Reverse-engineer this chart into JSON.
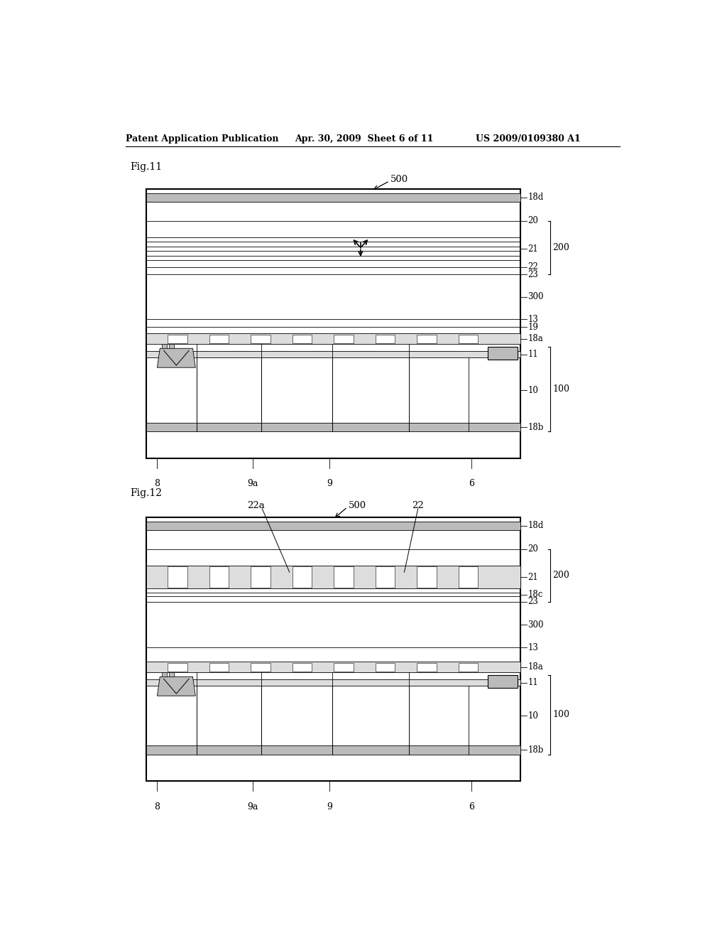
{
  "bg_color": "#ffffff",
  "header_text": "Patent Application Publication",
  "header_date": "Apr. 30, 2009  Sheet 6 of 11",
  "header_patent": "US 2009/0109380 A1",
  "fig11_label": "Fig.11",
  "fig12_label": "Fig.12",
  "lw_outer": 1.5,
  "lw_inner": 0.8,
  "lw_thin": 0.6,
  "gray_dark": "#888888",
  "gray_med": "#bbbbbb",
  "gray_light": "#dddddd"
}
